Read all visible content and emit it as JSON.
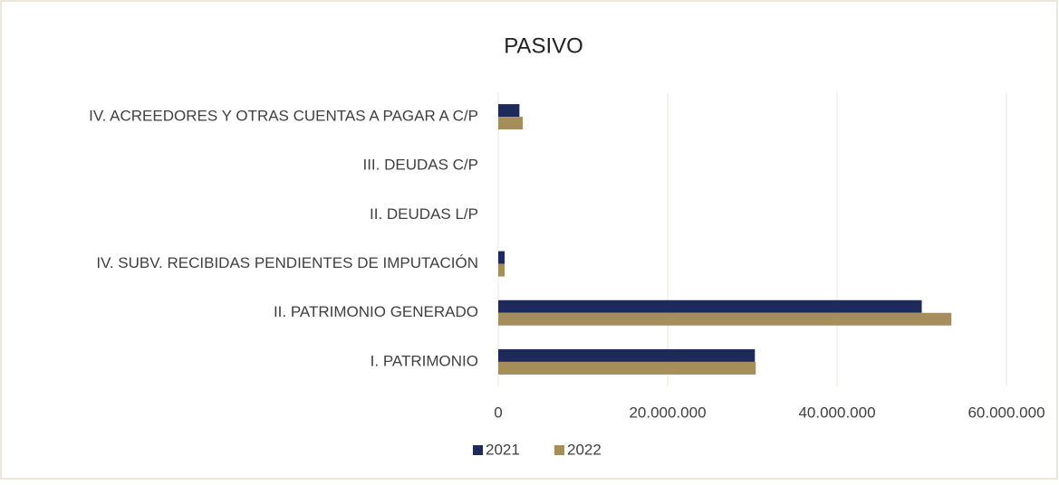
{
  "chart_data": {
    "type": "bar",
    "orientation": "horizontal",
    "title": "PASIVO",
    "categories": [
      "IV. ACREEDORES Y OTRAS CUENTAS A PAGAR A C/P",
      "III. DEUDAS C/P",
      "II. DEUDAS L/P",
      "IV. SUBV. RECIBIDAS PENDIENTES DE IMPUTACIÓN",
      "II. PATRIMONIO GENERADO",
      "I. PATRIMONIO"
    ],
    "series": [
      {
        "name": "2021",
        "color": "#1f2a5c",
        "values": [
          2500000,
          0,
          0,
          750000,
          50000000,
          30300000
        ]
      },
      {
        "name": "2022",
        "color": "#a58d5c",
        "values": [
          2900000,
          0,
          0,
          750000,
          53500000,
          30400000
        ]
      }
    ],
    "xlim": [
      0,
      60000000
    ],
    "xticks": [
      0,
      {
        "value": 20000000,
        "label": "20.000.000"
      },
      {
        "value": 40000000,
        "label": "40.000.000"
      },
      {
        "value": 60000000,
        "label": "60.000.000"
      }
    ],
    "grid": true,
    "legend": "bottom"
  }
}
